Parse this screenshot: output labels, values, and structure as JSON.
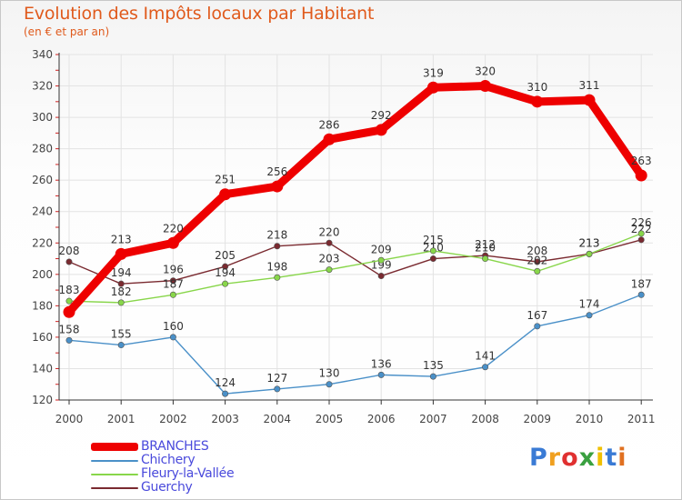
{
  "header": {
    "title": "Evolution des Impôts locaux par Habitant",
    "subtitle": "(en € et par an)"
  },
  "brand": {
    "name": "Proxiti",
    "letters": [
      "P",
      "r",
      "o",
      "x",
      "i",
      "t",
      "i"
    ],
    "colors": [
      "#3a7bd5",
      "#f0a020",
      "#e03030",
      "#3aa040",
      "#f0c000",
      "#3a7bd5",
      "#e07020"
    ]
  },
  "chart_data": {
    "type": "line",
    "title": "Evolution des Impôts locaux par Habitant",
    "subtitle": "(en € et par an)",
    "xlabel": "",
    "ylabel": "",
    "x": [
      "2000",
      "2001",
      "2002",
      "2003",
      "2004",
      "2005",
      "2006",
      "2007",
      "2008",
      "2009",
      "2010",
      "2011"
    ],
    "ylim": [
      120,
      340
    ],
    "yticks": [
      120,
      140,
      160,
      180,
      200,
      220,
      240,
      260,
      280,
      300,
      320,
      340
    ],
    "grid": true,
    "legend_position": "bottom-left",
    "series": [
      {
        "name": "BRANCHES",
        "color": "#ee0000",
        "values": [
          176,
          213,
          220,
          251,
          256,
          286,
          292,
          319,
          320,
          310,
          311,
          263
        ],
        "labels": [
          "",
          "213",
          "220",
          "251",
          "256",
          "286",
          "292",
          "319",
          "320",
          "310",
          "311",
          "263"
        ]
      },
      {
        "name": "Chichery",
        "color": "#4a90c8",
        "values": [
          158,
          155,
          160,
          124,
          127,
          130,
          136,
          135,
          141,
          167,
          174,
          187
        ],
        "labels": [
          "158",
          "155",
          "160",
          "124",
          "127",
          "130",
          "136",
          "135",
          "141",
          "167",
          "174",
          "187"
        ]
      },
      {
        "name": "Fleury-la-Vallée",
        "color": "#88d64a",
        "values": [
          183,
          182,
          187,
          194,
          198,
          203,
          209,
          215,
          210,
          202,
          213,
          226
        ],
        "labels": [
          "183",
          "182",
          "187",
          "194",
          "198",
          "203",
          "209",
          "215",
          "210",
          "202",
          "213",
          "226"
        ]
      },
      {
        "name": "Guerchy",
        "color": "#7a2a30",
        "values": [
          208,
          194,
          196,
          205,
          218,
          220,
          199,
          210,
          212,
          208,
          213,
          222
        ],
        "labels": [
          "208",
          "194",
          "196",
          "205",
          "218",
          "220",
          "199",
          "210",
          "212",
          "208",
          "213",
          "222"
        ]
      }
    ]
  }
}
